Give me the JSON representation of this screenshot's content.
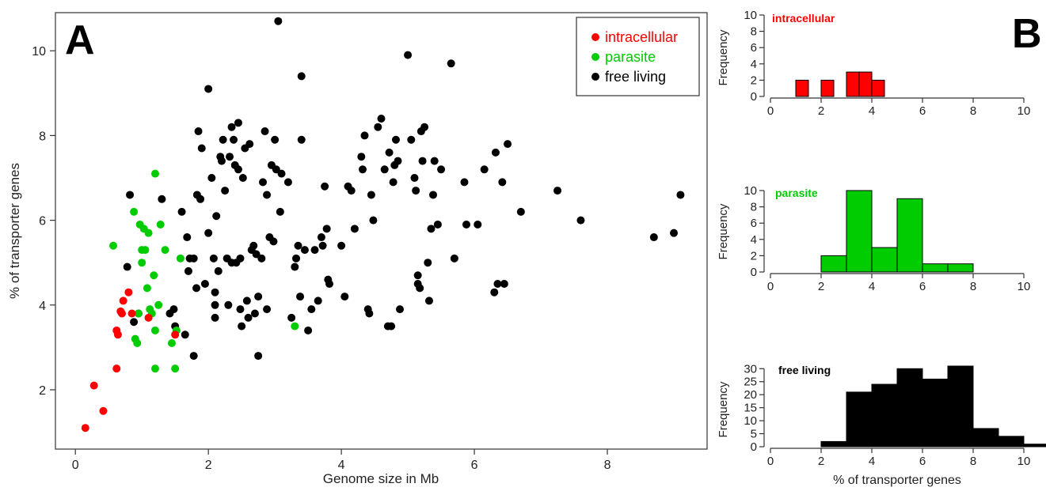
{
  "panels": {
    "a_letter": "A",
    "b_letter": "B"
  },
  "chart_data": [
    {
      "type": "scatter",
      "xlabel": "Genome size in Mb",
      "ylabel": "% of transporter genes",
      "xlim": [
        -0.3,
        9.5
      ],
      "ylim": [
        0.6,
        10.9
      ],
      "xticks": [
        0,
        2,
        4,
        6,
        8
      ],
      "yticks": [
        2,
        4,
        6,
        8,
        10
      ],
      "legend": "top-right",
      "series": [
        {
          "name": "intracellular",
          "color": "#ff0000",
          "points": [
            [
              0.15,
              1.1
            ],
            [
              0.28,
              2.1
            ],
            [
              0.42,
              1.5
            ],
            [
              0.62,
              2.5
            ],
            [
              0.62,
              3.4
            ],
            [
              0.64,
              3.3
            ],
            [
              0.68,
              3.85
            ],
            [
              0.7,
              3.8
            ],
            [
              0.72,
              4.1
            ],
            [
              0.8,
              4.3
            ],
            [
              0.85,
              3.8
            ],
            [
              1.1,
              3.7
            ],
            [
              1.5,
              3.3
            ]
          ]
        },
        {
          "name": "parasite",
          "color": "#00cc00",
          "points": [
            [
              0.57,
              5.4
            ],
            [
              0.88,
              6.2
            ],
            [
              0.9,
              3.2
            ],
            [
              0.93,
              3.1
            ],
            [
              0.95,
              3.8
            ],
            [
              0.97,
              5.9
            ],
            [
              1.0,
              5.0
            ],
            [
              1.0,
              5.3
            ],
            [
              1.03,
              5.8
            ],
            [
              1.05,
              5.3
            ],
            [
              1.08,
              4.4
            ],
            [
              1.1,
              5.7
            ],
            [
              1.12,
              3.9
            ],
            [
              1.15,
              3.8
            ],
            [
              1.18,
              4.7
            ],
            [
              1.2,
              2.5
            ],
            [
              1.2,
              3.4
            ],
            [
              1.2,
              7.1
            ],
            [
              1.25,
              4.0
            ],
            [
              1.28,
              5.9
            ],
            [
              1.35,
              5.3
            ],
            [
              1.45,
              3.1
            ],
            [
              1.5,
              2.5
            ],
            [
              1.52,
              3.4
            ],
            [
              1.58,
              5.1
            ],
            [
              3.3,
              3.5
            ]
          ]
        },
        {
          "name": "free living",
          "color": "#000000",
          "points": [
            [
              0.78,
              4.9
            ],
            [
              0.82,
              6.6
            ],
            [
              0.88,
              3.6
            ],
            [
              0.95,
              3.8
            ],
            [
              1.3,
              6.5
            ],
            [
              1.42,
              3.8
            ],
            [
              1.48,
              3.9
            ],
            [
              1.5,
              3.5
            ],
            [
              1.6,
              6.2
            ],
            [
              1.65,
              3.3
            ],
            [
              1.68,
              5.6
            ],
            [
              1.7,
              4.8
            ],
            [
              1.72,
              5.1
            ],
            [
              1.78,
              2.8
            ],
            [
              1.78,
              5.1
            ],
            [
              1.82,
              4.4
            ],
            [
              1.83,
              6.6
            ],
            [
              1.85,
              8.1
            ],
            [
              1.88,
              6.5
            ],
            [
              1.9,
              7.7
            ],
            [
              1.95,
              4.5
            ],
            [
              2.0,
              5.7
            ],
            [
              2.0,
              9.1
            ],
            [
              2.05,
              7.0
            ],
            [
              2.08,
              5.1
            ],
            [
              2.1,
              3.7
            ],
            [
              2.1,
              4.0
            ],
            [
              2.1,
              4.3
            ],
            [
              2.12,
              6.1
            ],
            [
              2.15,
              4.8
            ],
            [
              2.18,
              7.5
            ],
            [
              2.2,
              7.4
            ],
            [
              2.22,
              7.9
            ],
            [
              2.25,
              6.7
            ],
            [
              2.28,
              5.1
            ],
            [
              2.3,
              4.0
            ],
            [
              2.32,
              7.5
            ],
            [
              2.35,
              5.0
            ],
            [
              2.35,
              8.2
            ],
            [
              2.38,
              7.9
            ],
            [
              2.4,
              7.3
            ],
            [
              2.42,
              5.0
            ],
            [
              2.45,
              8.3
            ],
            [
              2.45,
              7.2
            ],
            [
              2.48,
              3.9
            ],
            [
              2.48,
              5.1
            ],
            [
              2.5,
              3.5
            ],
            [
              2.52,
              7.0
            ],
            [
              2.55,
              7.7
            ],
            [
              2.58,
              4.1
            ],
            [
              2.6,
              3.7
            ],
            [
              2.62,
              7.8
            ],
            [
              2.65,
              5.3
            ],
            [
              2.68,
              5.4
            ],
            [
              2.7,
              3.8
            ],
            [
              2.72,
              5.2
            ],
            [
              2.75,
              2.8
            ],
            [
              2.75,
              4.2
            ],
            [
              2.8,
              5.1
            ],
            [
              2.82,
              6.9
            ],
            [
              2.85,
              8.1
            ],
            [
              2.88,
              3.9
            ],
            [
              2.88,
              6.6
            ],
            [
              2.92,
              5.6
            ],
            [
              2.95,
              7.3
            ],
            [
              2.98,
              5.5
            ],
            [
              3.0,
              7.9
            ],
            [
              3.02,
              7.2
            ],
            [
              3.05,
              10.7
            ],
            [
              3.08,
              6.2
            ],
            [
              3.1,
              7.1
            ],
            [
              3.2,
              6.9
            ],
            [
              3.25,
              3.7
            ],
            [
              3.3,
              4.9
            ],
            [
              3.32,
              5.1
            ],
            [
              3.35,
              5.4
            ],
            [
              3.38,
              4.2
            ],
            [
              3.4,
              9.4
            ],
            [
              3.4,
              7.9
            ],
            [
              3.45,
              5.3
            ],
            [
              3.5,
              3.4
            ],
            [
              3.55,
              3.9
            ],
            [
              3.6,
              5.3
            ],
            [
              3.65,
              4.1
            ],
            [
              3.7,
              5.6
            ],
            [
              3.72,
              5.4
            ],
            [
              3.75,
              6.8
            ],
            [
              3.78,
              5.8
            ],
            [
              3.8,
              4.6
            ],
            [
              3.82,
              4.5
            ],
            [
              4.0,
              5.4
            ],
            [
              4.05,
              4.2
            ],
            [
              4.1,
              6.8
            ],
            [
              4.15,
              6.7
            ],
            [
              4.2,
              5.8
            ],
            [
              4.3,
              7.5
            ],
            [
              4.32,
              7.2
            ],
            [
              4.35,
              8.0
            ],
            [
              4.4,
              3.9
            ],
            [
              4.42,
              3.8
            ],
            [
              4.45,
              6.6
            ],
            [
              4.48,
              6.0
            ],
            [
              4.55,
              8.2
            ],
            [
              4.6,
              8.4
            ],
            [
              4.65,
              7.2
            ],
            [
              4.7,
              3.5
            ],
            [
              4.72,
              7.6
            ],
            [
              4.75,
              3.5
            ],
            [
              4.78,
              6.9
            ],
            [
              4.8,
              7.3
            ],
            [
              4.82,
              7.9
            ],
            [
              4.85,
              7.4
            ],
            [
              4.88,
              3.9
            ],
            [
              5.0,
              9.9
            ],
            [
              5.05,
              7.9
            ],
            [
              5.1,
              7.0
            ],
            [
              5.12,
              6.7
            ],
            [
              5.15,
              4.5
            ],
            [
              5.15,
              4.7
            ],
            [
              5.18,
              4.4
            ],
            [
              5.2,
              8.1
            ],
            [
              5.22,
              7.4
            ],
            [
              5.25,
              8.2
            ],
            [
              5.3,
              5.0
            ],
            [
              5.32,
              4.1
            ],
            [
              5.35,
              5.8
            ],
            [
              5.38,
              6.6
            ],
            [
              5.4,
              7.4
            ],
            [
              5.45,
              5.9
            ],
            [
              5.5,
              7.2
            ],
            [
              5.65,
              9.7
            ],
            [
              5.7,
              5.1
            ],
            [
              5.85,
              6.9
            ],
            [
              5.88,
              5.9
            ],
            [
              6.05,
              5.9
            ],
            [
              6.15,
              7.2
            ],
            [
              6.3,
              4.3
            ],
            [
              6.32,
              7.6
            ],
            [
              6.35,
              4.5
            ],
            [
              6.42,
              6.9
            ],
            [
              6.45,
              4.5
            ],
            [
              6.5,
              7.8
            ],
            [
              6.7,
              6.2
            ],
            [
              7.25,
              6.7
            ],
            [
              7.6,
              6.0
            ],
            [
              8.7,
              5.6
            ],
            [
              9.0,
              5.7
            ],
            [
              9.1,
              6.6
            ]
          ]
        }
      ]
    },
    {
      "type": "bar",
      "title": "intracellular",
      "color": "#ff0000",
      "ylabel": "Frequency",
      "xlim": [
        0,
        10
      ],
      "ylim": [
        0,
        10
      ],
      "xticks": [
        0,
        2,
        4,
        6,
        8,
        10
      ],
      "yticks": [
        0,
        2,
        4,
        6,
        8,
        10
      ],
      "bin_width": 0.5,
      "bins": [
        [
          1.0,
          2
        ],
        [
          1.5,
          0
        ],
        [
          2.0,
          2
        ],
        [
          2.5,
          0
        ],
        [
          3.0,
          3
        ],
        [
          3.5,
          3
        ],
        [
          4.0,
          2
        ]
      ]
    },
    {
      "type": "bar",
      "title": "parasite",
      "color": "#00cc00",
      "ylabel": "Frequency",
      "xlim": [
        0,
        10
      ],
      "ylim": [
        0,
        10
      ],
      "xticks": [
        0,
        2,
        4,
        6,
        8,
        10
      ],
      "yticks": [
        0,
        2,
        4,
        6,
        8,
        10
      ],
      "bin_width": 1,
      "bins": [
        [
          2,
          2
        ],
        [
          3,
          10
        ],
        [
          4,
          3
        ],
        [
          5,
          9
        ],
        [
          6,
          1
        ],
        [
          7,
          1
        ]
      ]
    },
    {
      "type": "bar",
      "title": "free living",
      "color": "#000000",
      "ylabel": "Frequency",
      "xlabel": "% of transporter genes",
      "xlim": [
        0,
        10
      ],
      "ylim": [
        0,
        31
      ],
      "xticks": [
        0,
        2,
        4,
        6,
        8,
        10
      ],
      "yticks": [
        0,
        5,
        10,
        15,
        20,
        25,
        30
      ],
      "bin_width": 1,
      "bins": [
        [
          2,
          2
        ],
        [
          3,
          21
        ],
        [
          4,
          24
        ],
        [
          5,
          30
        ],
        [
          6,
          26
        ],
        [
          7,
          31
        ],
        [
          8,
          7
        ],
        [
          9,
          4
        ],
        [
          10,
          1
        ]
      ]
    }
  ]
}
